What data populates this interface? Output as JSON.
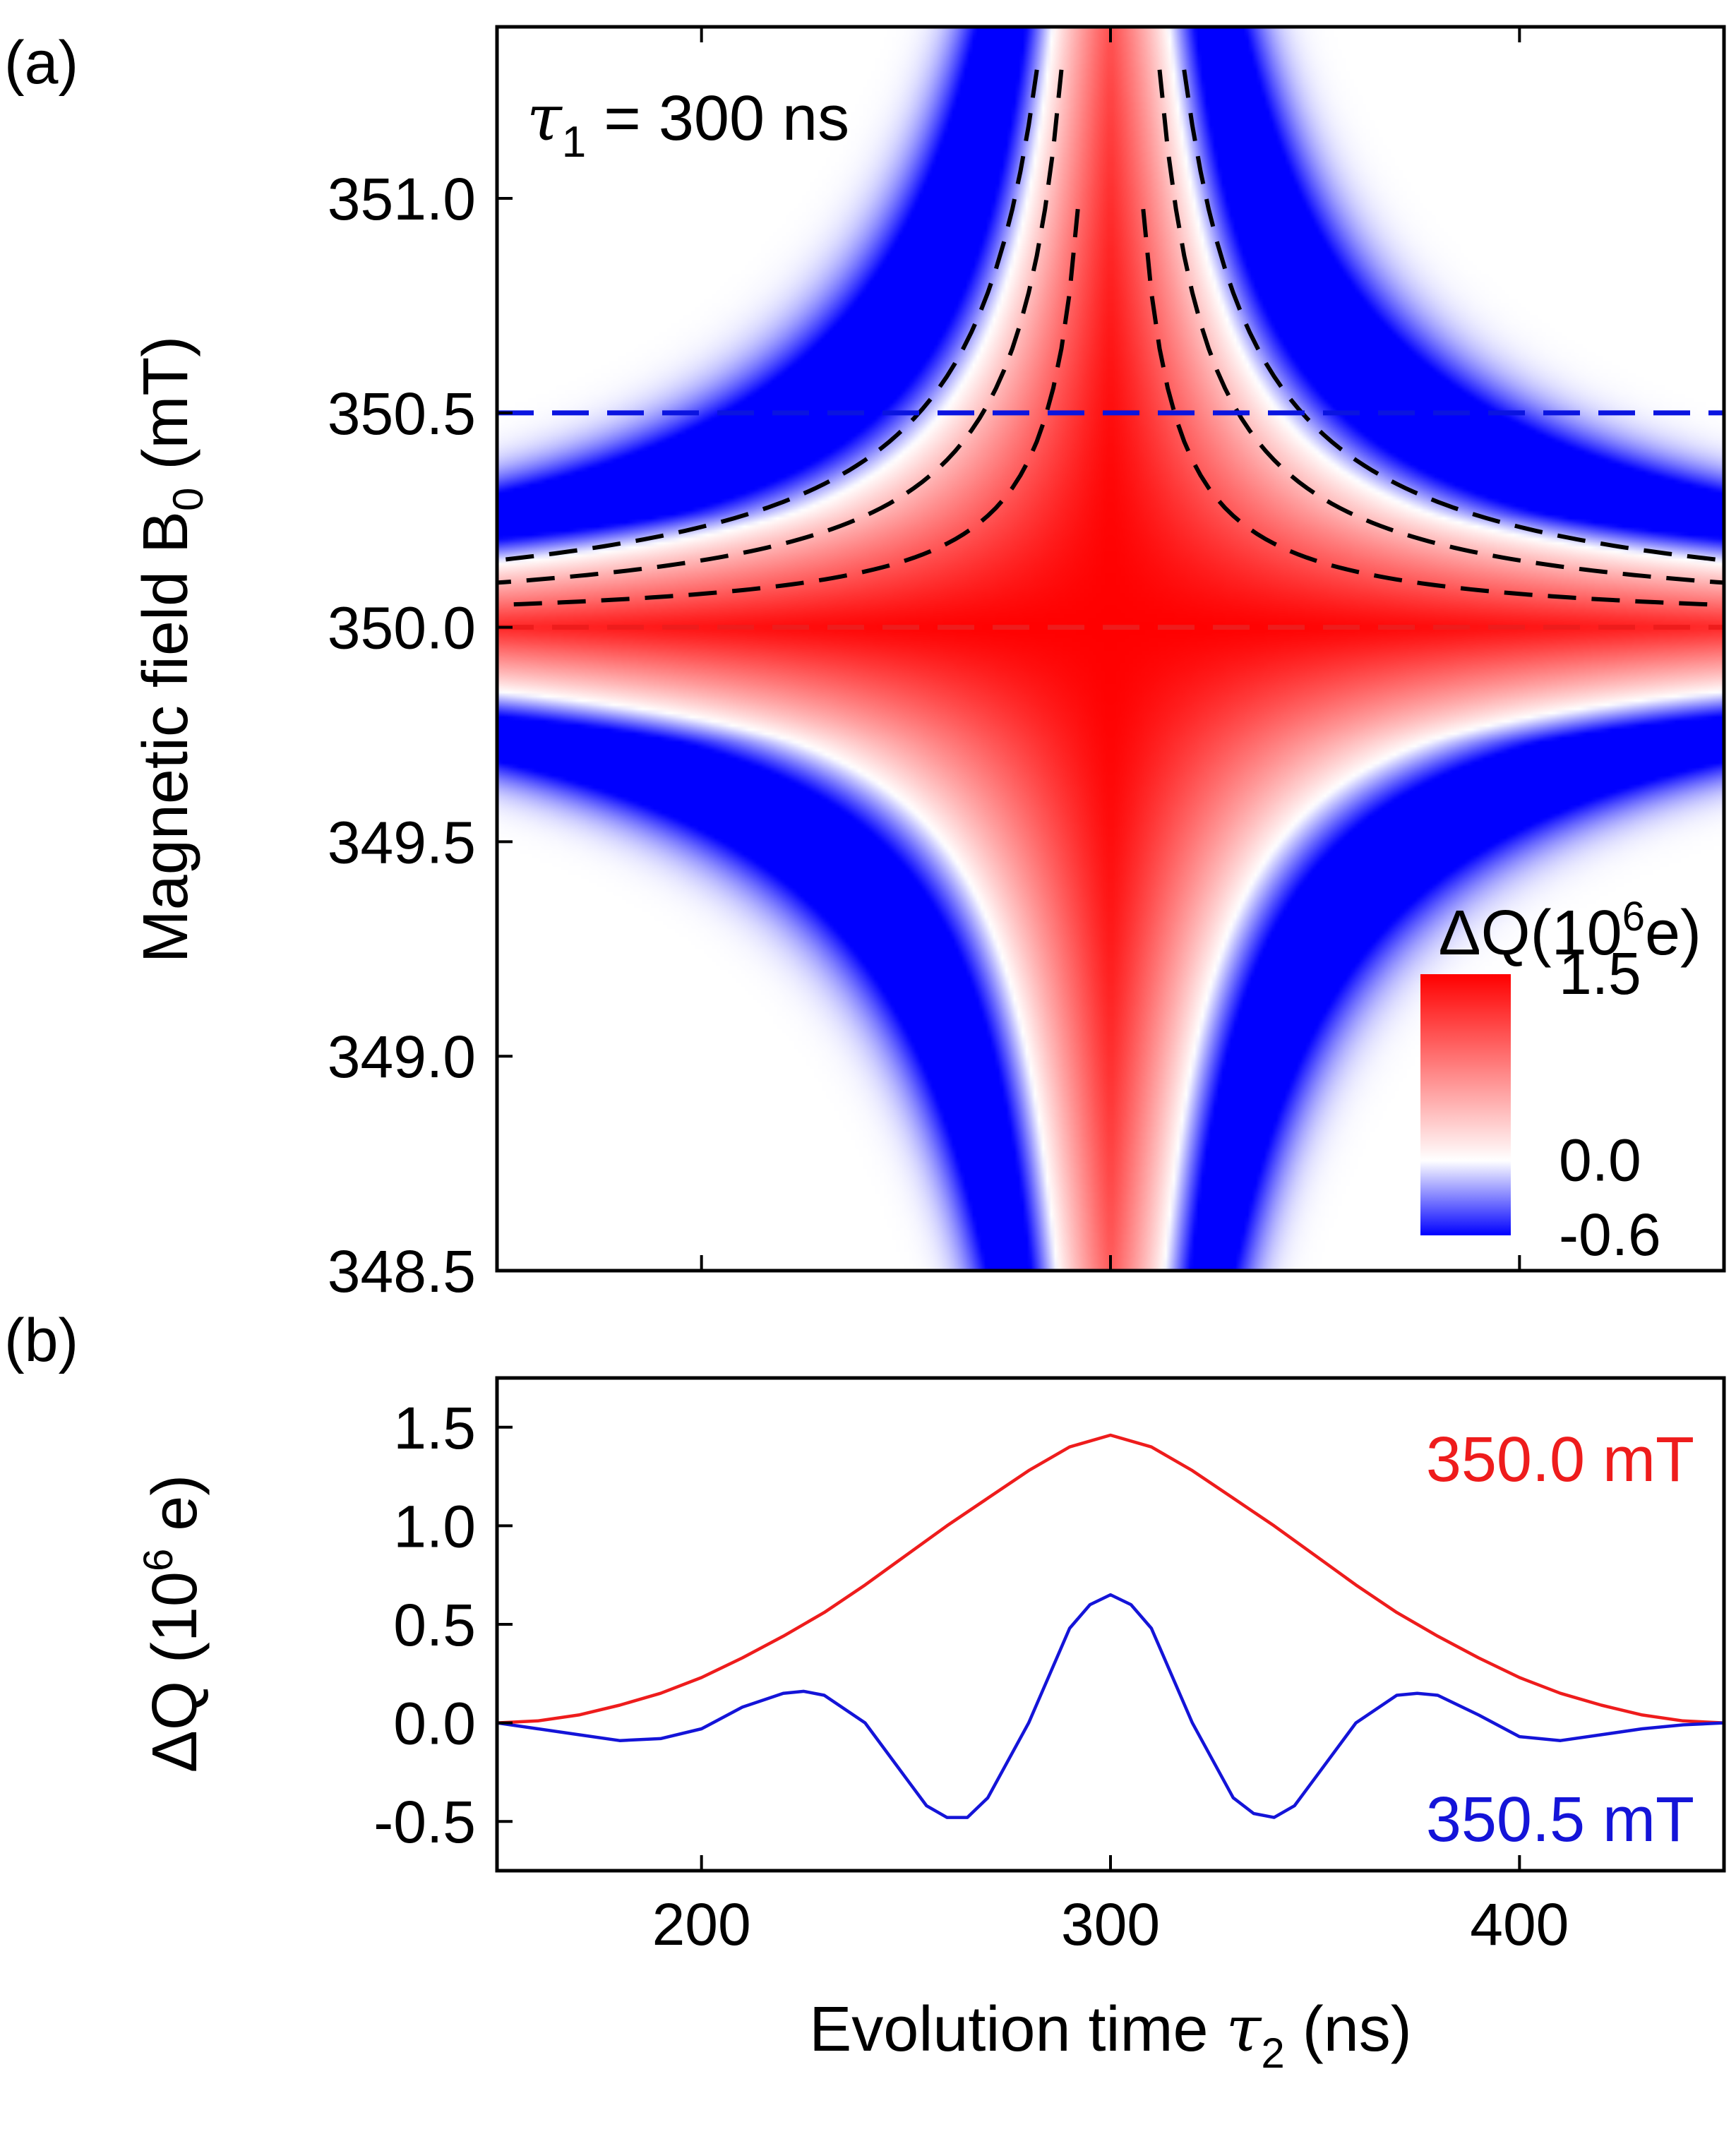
{
  "chart_data": [
    {
      "panel": "(a)",
      "type": "heatmap",
      "annotation": {
        "tau": "τ",
        "sub": "1",
        "rest": " = 300 ns"
      },
      "xlim": [
        150,
        450
      ],
      "xticks": [
        200,
        300,
        400
      ],
      "ylim": [
        348.5,
        351.4
      ],
      "yticks": [
        "348.5",
        "349.0",
        "349.5",
        "350.0",
        "350.5",
        "351.0"
      ],
      "ylabel": {
        "main": "Magnetic field B",
        "sub": "0",
        "rest": " (mT)"
      },
      "model": {
        "tau1": 300,
        "b_center": 350.0,
        "peak": 1.5,
        "min": -0.6
      },
      "colorbar": {
        "title": {
          "pre": "ΔQ(10",
          "sup": "6",
          "post": "e)"
        },
        "ticks": [
          "1.5",
          "0.0",
          "-0.6"
        ],
        "values": [
          1.5,
          0.0,
          -0.6
        ],
        "colors": {
          "max": "#ff0000",
          "zero": "#ffffff",
          "min": "#0000ff"
        }
      },
      "reference_lines": [
        {
          "field": 350.5,
          "color": "#0a14e0",
          "style": "dashed"
        },
        {
          "field": 350.0,
          "color": "#ee1c1c",
          "style": "dashed"
        }
      ],
      "hyperbola_offsets": [
        0.13,
        0.26,
        0.39
      ],
      "hyperbola_color": "#000000"
    },
    {
      "panel": "(b)",
      "type": "line",
      "xlim": [
        150,
        450
      ],
      "xticks": [
        "200",
        "300",
        "400"
      ],
      "ylim": [
        -0.75,
        1.75
      ],
      "yticks": [
        "-0.5",
        "0.0",
        "0.5",
        "1.0",
        "1.5"
      ],
      "xlabel": {
        "main": "Evolution time ",
        "tau": "τ",
        "sub": "2",
        "rest": " (ns)"
      },
      "ylabel": {
        "pre": "ΔQ (10",
        "sup": "6",
        "post": " e)"
      },
      "series": [
        {
          "name": "350.0 mT",
          "color": "#ee1c1c",
          "x": [
            150,
            160,
            170,
            180,
            190,
            200,
            210,
            220,
            230,
            240,
            250,
            260,
            270,
            280,
            290,
            300,
            310,
            320,
            330,
            340,
            350,
            360,
            370,
            380,
            390,
            400,
            410,
            420,
            430,
            440,
            450
          ],
          "y": [
            0.0,
            0.01,
            0.04,
            0.09,
            0.15,
            0.23,
            0.33,
            0.44,
            0.56,
            0.7,
            0.85,
            1.0,
            1.14,
            1.28,
            1.4,
            1.46,
            1.4,
            1.28,
            1.14,
            1.0,
            0.85,
            0.7,
            0.56,
            0.44,
            0.33,
            0.23,
            0.15,
            0.09,
            0.04,
            0.01,
            0.0
          ]
        },
        {
          "name": "350.5 mT",
          "color": "#1414d8",
          "x": [
            150,
            160,
            170,
            180,
            190,
            200,
            210,
            220,
            225,
            230,
            240,
            250,
            255,
            260,
            265,
            270,
            280,
            290,
            295,
            300,
            305,
            310,
            320,
            330,
            335,
            340,
            345,
            350,
            360,
            370,
            375,
            380,
            390,
            400,
            410,
            420,
            430,
            440,
            450
          ],
          "y": [
            0.0,
            -0.03,
            -0.06,
            -0.09,
            -0.08,
            -0.03,
            0.08,
            0.15,
            0.16,
            0.14,
            0.0,
            -0.28,
            -0.42,
            -0.48,
            -0.48,
            -0.38,
            0.0,
            0.48,
            0.6,
            0.65,
            0.6,
            0.48,
            0.0,
            -0.38,
            -0.46,
            -0.48,
            -0.42,
            -0.28,
            0.0,
            0.14,
            0.15,
            0.14,
            0.04,
            -0.07,
            -0.09,
            -0.06,
            -0.03,
            -0.01,
            0.0
          ]
        }
      ]
    }
  ]
}
